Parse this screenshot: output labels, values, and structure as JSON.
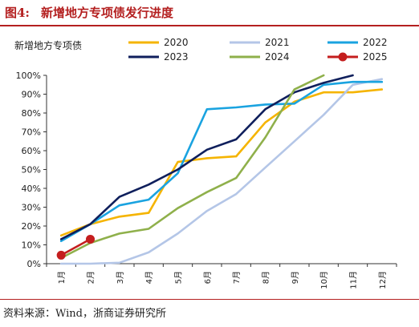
{
  "figure": {
    "number": "图4:",
    "title": "新增地方专项债发行进度",
    "source": "资料来源：Wind，浙商证券研究所"
  },
  "chart_data": {
    "type": "line",
    "ylabel": "新增地方专项债",
    "categories": [
      "1月",
      "2月",
      "3月",
      "4月",
      "5月",
      "6月",
      "7月",
      "8月",
      "9月",
      "10月",
      "11月",
      "12月"
    ],
    "yticks": [
      "0%",
      "10%",
      "20%",
      "30%",
      "40%",
      "50%",
      "60%",
      "70%",
      "80%",
      "90%",
      "100%"
    ],
    "ylim": [
      0,
      100
    ],
    "legend_position": "top",
    "series": [
      {
        "name": "2020",
        "color": "#f5b400",
        "marker": false,
        "values": [
          15,
          21,
          25,
          27,
          54,
          56,
          57,
          75,
          86,
          91,
          91,
          92.5
        ]
      },
      {
        "name": "2021",
        "color": "#b4c6e7",
        "marker": false,
        "values": [
          0,
          0,
          0.5,
          6,
          16,
          28,
          37,
          51,
          65,
          79,
          95,
          98
        ]
      },
      {
        "name": "2022",
        "color": "#1aa3e0",
        "marker": false,
        "values": [
          12,
          21,
          31,
          34,
          48,
          82,
          83,
          84.5,
          85,
          95,
          96.5,
          96.5
        ]
      },
      {
        "name": "2023",
        "color": "#0f1f5c",
        "marker": false,
        "values": [
          13,
          21,
          35.5,
          42,
          50,
          60.5,
          66,
          82,
          91,
          96,
          100,
          null
        ]
      },
      {
        "name": "2024",
        "color": "#8fb04b",
        "marker": false,
        "values": [
          3,
          11,
          16,
          18.5,
          29.5,
          38,
          45.5,
          67,
          92.5,
          100,
          null,
          null
        ]
      },
      {
        "name": "2025",
        "color": "#c41e1e",
        "marker": true,
        "values": [
          4.5,
          13,
          null,
          null,
          null,
          null,
          null,
          null,
          null,
          null,
          null,
          null
        ]
      }
    ]
  }
}
